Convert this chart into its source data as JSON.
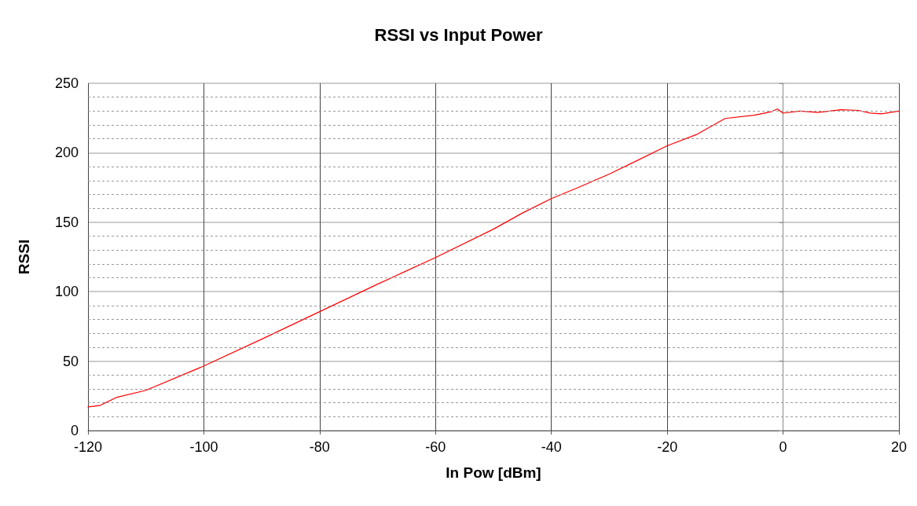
{
  "chart_data": {
    "type": "line",
    "title": "RSSI vs Input Power",
    "xlabel": "In Pow [dBm]",
    "ylabel": "RSSI",
    "series": [
      {
        "color": "#ff0000",
        "x": [
          -120,
          -118,
          -115,
          -110,
          -100,
          -90,
          -80,
          -70,
          -60,
          -50,
          -45,
          -40,
          -35,
          -30,
          -25,
          -20,
          -15,
          -10,
          -5,
          -2,
          -1,
          0,
          3,
          6,
          10,
          13,
          15,
          17,
          20
        ],
        "values": [
          17,
          18,
          24,
          29,
          46.5,
          65.8,
          85.6,
          105.4,
          124.6,
          145,
          156.6,
          167,
          175.6,
          184.7,
          194.8,
          205,
          213,
          224.7,
          227,
          229.6,
          231.5,
          228.5,
          230,
          229,
          231,
          230.5,
          228.6,
          228,
          230
        ]
      }
    ],
    "xlim": [
      -120,
      20
    ],
    "xticks": [
      -120,
      -100,
      -80,
      -60,
      -40,
      -20,
      0,
      20
    ],
    "ylim": [
      0,
      250
    ],
    "yticks": [
      0,
      50,
      100,
      150,
      200,
      250
    ],
    "grid": true,
    "marker": "none",
    "line_style": "solid"
  }
}
